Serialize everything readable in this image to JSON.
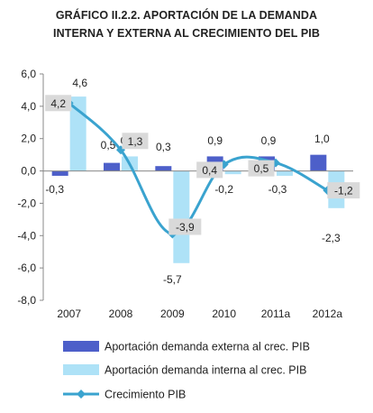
{
  "chart_data": {
    "type": "bar",
    "title_line1": "GRÁFICO II.2.2. APORTACIÓN DE LA DEMANDA",
    "title_line2": "INTERNA Y EXTERNA AL CRECIMIENTO DEL PIB",
    "categories": [
      "2007",
      "2008",
      "2009",
      "2010",
      "2011a",
      "2012a"
    ],
    "ylim": [
      -8,
      6
    ],
    "yticks": [
      "-8,0",
      "-6,0",
      "-4,0",
      "-2,0",
      "0,0",
      "2,0",
      "4,0",
      "6,0"
    ],
    "grid": false,
    "legend_position": "bottom",
    "series": [
      {
        "name": "Aportación demanda externa al crec. PIB",
        "kind": "bar",
        "color": "#4d5fc9",
        "values": [
          -0.3,
          0.5,
          0.3,
          0.9,
          0.9,
          1.0
        ],
        "labels": [
          "-0,3",
          "0,5",
          "0,3",
          "0,9",
          "0,9",
          "1,0"
        ]
      },
      {
        "name": "Aportación demanda interna al crec. PIB",
        "kind": "bar",
        "color": "#aee2f7",
        "values": [
          4.6,
          0.9,
          -5.7,
          -0.2,
          -0.3,
          -2.3
        ],
        "labels": [
          "4,6",
          "0,9",
          "-5,7",
          "-0,2",
          "-0,3",
          "-2,3"
        ]
      },
      {
        "name": "Crecimiento PIB",
        "kind": "line",
        "color": "#3aa3cf",
        "values": [
          4.2,
          1.3,
          -3.9,
          0.4,
          0.5,
          -1.2
        ],
        "labels": [
          "4,2",
          "1,3",
          "-3,9",
          "0,4",
          "0,5",
          "-1,2"
        ]
      }
    ]
  }
}
